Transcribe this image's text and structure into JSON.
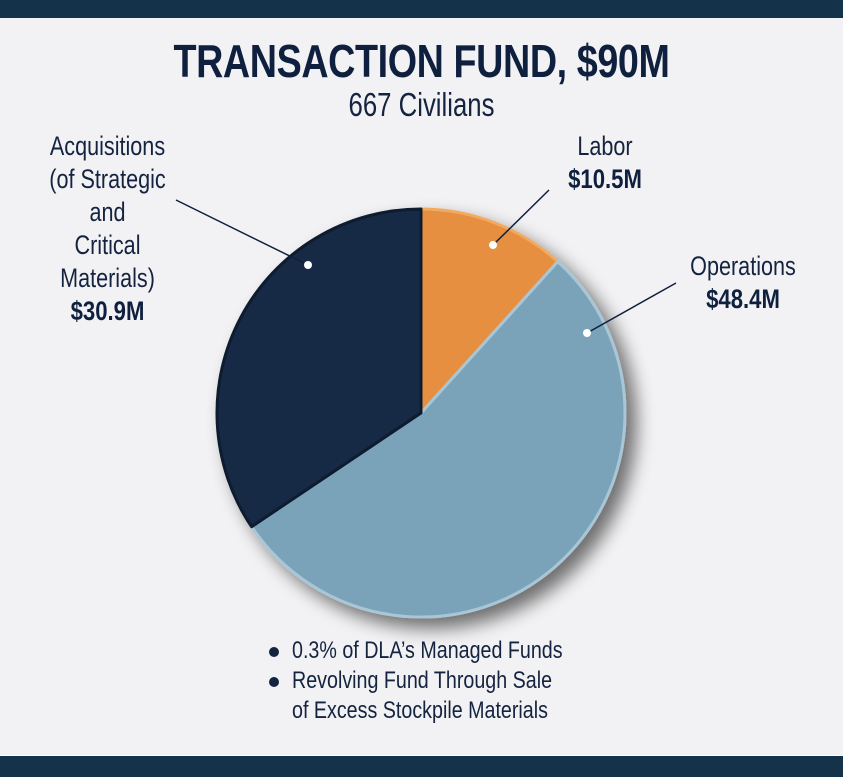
{
  "header": {
    "title": "TRANSACTION FUND, $90M",
    "subtitle": "667 Civilians"
  },
  "labels": {
    "acquisitions": {
      "name": "Acquisitions\n(of Strategic and\nCritical\nMaterials)",
      "value": "$30.9M"
    },
    "labor": {
      "name": "Labor",
      "value": "$10.5M"
    },
    "operations": {
      "name": "Operations",
      "value": "$48.4M"
    }
  },
  "bullets": [
    "0.3% of DLA’s Managed Funds",
    "Revolving Fund Through Sale\nof Excess Stockpile Materials"
  ],
  "colors": {
    "labor": "#e68f3f",
    "operations": "#7aa3ba",
    "acquisitions": "#142a45",
    "frame": "#14334a",
    "background": "#f2f2f4"
  },
  "chart_data": {
    "type": "pie",
    "title": "TRANSACTION FUND, $90M",
    "subtitle": "667 Civilians",
    "categories": [
      "Labor",
      "Operations",
      "Acquisitions (of Strategic and Critical Materials)"
    ],
    "values": [
      10.5,
      48.4,
      30.9
    ],
    "units": "$M",
    "total": 90,
    "start_angle": "12 o'clock, clockwise",
    "legend": "none (callout labels)",
    "notes": [
      "0.3% of DLA’s Managed Funds",
      "Revolving Fund Through Sale of Excess Stockpile Materials"
    ]
  }
}
